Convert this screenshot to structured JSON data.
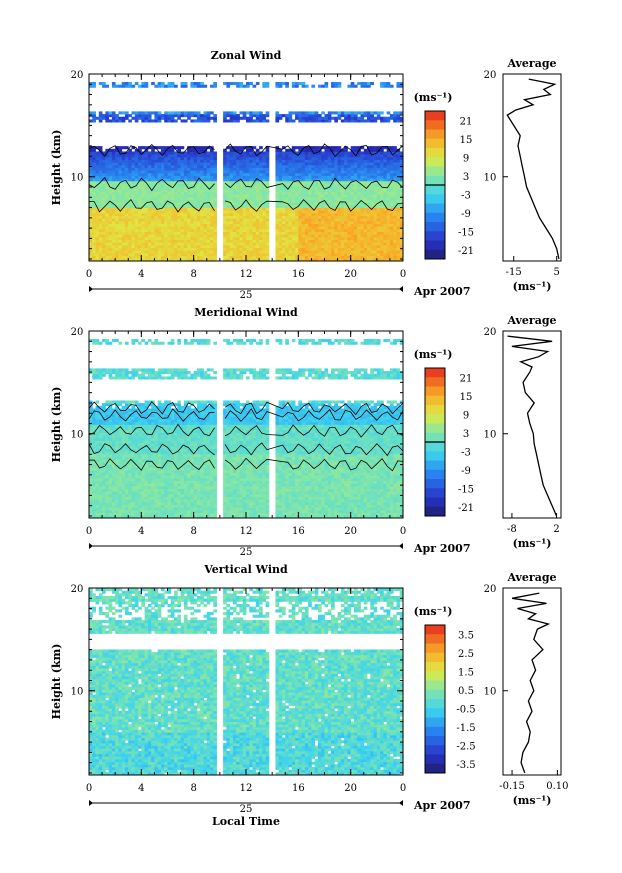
{
  "chart_data": [
    {
      "type": "heatmap",
      "title": "Zonal Wind",
      "ylabel": "Height (km)",
      "ytick_labels": [
        "20",
        "10"
      ],
      "xtick_labels": [
        "0",
        "4",
        "8",
        "12",
        "16",
        "20",
        "0"
      ],
      "date_day": "25",
      "date_month_year": "Apr 2007",
      "ylim": [
        1.8,
        20
      ],
      "colorbar_unit": "(ms⁻¹)",
      "colorbar_ticks": [
        "21",
        "15",
        "9",
        "3",
        "-3",
        "-9",
        "-15",
        "-21"
      ],
      "colorbar_range": [
        -24,
        24
      ],
      "profile_title": "Average",
      "profile_xtick_labels": [
        "-15",
        "5"
      ],
      "profile_xlabel": "(ms⁻¹)",
      "profile_xlim": [
        -20,
        7
      ],
      "profile": {
        "height": [
          2,
          3,
          4,
          5,
          6,
          7,
          8,
          9,
          10,
          11,
          12,
          13,
          14,
          15,
          16,
          16.5,
          17,
          17.5,
          18,
          18.5,
          19,
          19.5
        ],
        "value": [
          6,
          5,
          3,
          0,
          -3,
          -5,
          -7,
          -9,
          -10,
          -11,
          -12,
          -13,
          -12,
          -15,
          -18,
          -14,
          -6,
          -10,
          2,
          -1,
          4,
          -8
        ]
      },
      "profile_type": "line"
    },
    {
      "type": "heatmap",
      "title": "Meridional Wind",
      "ylabel": "Height (km)",
      "ytick_labels": [
        "20",
        "10"
      ],
      "xtick_labels": [
        "0",
        "4",
        "8",
        "12",
        "16",
        "20",
        "0"
      ],
      "date_day": "25",
      "date_month_year": "Apr 2007",
      "ylim": [
        1.8,
        20
      ],
      "colorbar_unit": "(ms⁻¹)",
      "colorbar_ticks": [
        "21",
        "15",
        "9",
        "3",
        "-3",
        "-9",
        "-15",
        "-21"
      ],
      "colorbar_range": [
        -24,
        24
      ],
      "profile_title": "Average",
      "profile_xtick_labels": [
        "-8",
        "2"
      ],
      "profile_xlabel": "(ms⁻¹)",
      "profile_xlim": [
        -10,
        3
      ],
      "profile": {
        "height": [
          2,
          3,
          4,
          5,
          6,
          7,
          8,
          9,
          10,
          11,
          12,
          13,
          14,
          15,
          16,
          16.5,
          17,
          17.5,
          18,
          18.5,
          19,
          19.5
        ],
        "value": [
          2,
          1,
          0,
          -1,
          -1.5,
          -2,
          -2.5,
          -3,
          -3.2,
          -4,
          -4.5,
          -3,
          -5,
          -5.5,
          -4,
          -3.5,
          -6,
          -2,
          0,
          -8,
          1,
          -9
        ]
      },
      "profile_type": "line"
    },
    {
      "type": "heatmap",
      "title": "Vertical Wind",
      "ylabel": "Height (km)",
      "ytick_labels": [
        "20",
        "10"
      ],
      "xtick_labels": [
        "0",
        "4",
        "8",
        "12",
        "16",
        "20",
        "0"
      ],
      "date_day": "25",
      "date_month_year": "Apr 2007",
      "xlabel": "Local Time",
      "ylim": [
        1.8,
        20
      ],
      "colorbar_unit": "(ms⁻¹)",
      "colorbar_ticks": [
        "3.5",
        "2.5",
        "1.5",
        "0.5",
        "-0.5",
        "-1.5",
        "-2.5",
        "-3.5"
      ],
      "colorbar_range": [
        -4,
        4
      ],
      "profile_title": "Average",
      "profile_xtick_labels": [
        "-0.15",
        "0.10"
      ],
      "profile_xlabel": "(ms⁻¹)",
      "profile_xlim": [
        -0.2,
        0.12
      ],
      "profile": {
        "height": [
          2,
          3,
          4,
          5,
          6,
          7,
          8,
          9,
          10,
          11,
          12,
          13,
          14,
          15,
          16,
          16.5,
          17,
          17.5,
          18,
          18.5,
          19,
          19.5
        ],
        "value": [
          -0.08,
          -0.1,
          -0.09,
          -0.06,
          -0.05,
          -0.07,
          -0.04,
          -0.06,
          -0.03,
          -0.05,
          -0.02,
          -0.04,
          0.02,
          -0.03,
          -0.01,
          0.05,
          -0.06,
          -0.02,
          -0.12,
          0.04,
          -0.15,
          0.0
        ]
      },
      "profile_type": "line"
    }
  ]
}
